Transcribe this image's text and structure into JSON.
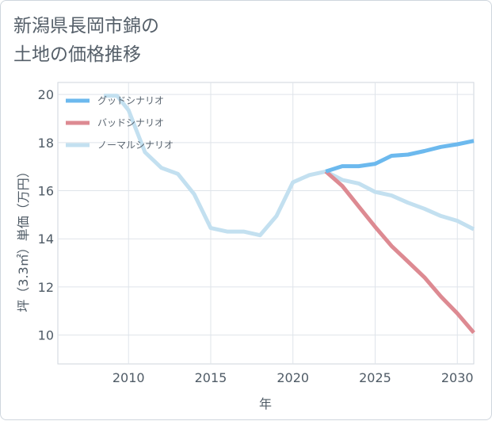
{
  "chart_data": {
    "type": "line",
    "title": "新潟県長岡市錦の\n土地の価格推移",
    "xlabel": "年",
    "ylabel": "坪（3.3㎡）単価（万円）",
    "xlim": [
      2005.7,
      2031
    ],
    "ylim": [
      8.8,
      20.5
    ],
    "xticks": [
      2010,
      2015,
      2020,
      2025,
      2030
    ],
    "yticks": [
      10,
      12,
      14,
      16,
      18,
      20
    ],
    "grid": true,
    "legend_position": "top-left",
    "series": [
      {
        "name": "グッドシナリオ",
        "color": "#6cb9ee",
        "x": [
          2022,
          2023,
          2024,
          2025,
          2026,
          2027,
          2028,
          2029,
          2030,
          2031
        ],
        "y": [
          16.8,
          17.02,
          17.02,
          17.12,
          17.45,
          17.5,
          17.65,
          17.82,
          17.93,
          18.07
        ]
      },
      {
        "name": "バッドシナリオ",
        "color": "#dd8a92",
        "x": [
          2022,
          2023,
          2024,
          2025,
          2026,
          2027,
          2028,
          2029,
          2030,
          2031
        ],
        "y": [
          16.8,
          16.2,
          15.35,
          14.5,
          13.7,
          13.05,
          12.4,
          11.6,
          10.9,
          10.1
        ]
      },
      {
        "name": "ノーマルシナリオ",
        "color": "#c3e0f0",
        "x": [
          2008.5,
          2009.3,
          2010,
          2011,
          2012,
          2013,
          2014,
          2015,
          2016,
          2017,
          2018,
          2019,
          2020,
          2021,
          2022,
          2023,
          2024,
          2025,
          2026,
          2027,
          2028,
          2029,
          2030,
          2031
        ],
        "y": [
          19.95,
          19.95,
          19.35,
          17.6,
          16.95,
          16.7,
          15.85,
          14.45,
          14.3,
          14.3,
          14.15,
          14.95,
          16.35,
          16.65,
          16.8,
          16.45,
          16.3,
          15.95,
          15.8,
          15.5,
          15.25,
          14.95,
          14.75,
          14.4
        ]
      }
    ]
  }
}
